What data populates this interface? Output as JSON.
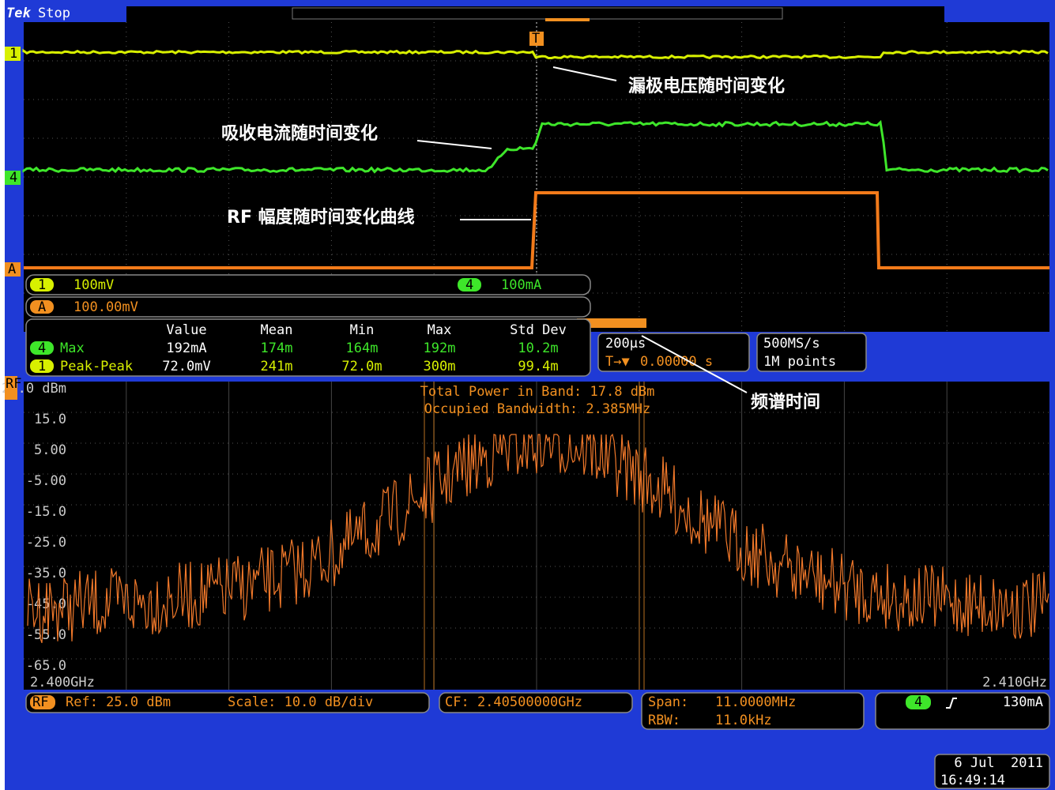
{
  "header": {
    "brand": "Tek",
    "status": "Stop"
  },
  "markers": {
    "ch1": "1",
    "ch4": "4",
    "ref": "A",
    "trigger": "T"
  },
  "annotations": [
    "漏极电压随时间变化",
    "吸收电流随时间变化",
    "RF 幅度随时间变化曲线",
    "频谱时间"
  ],
  "scale_bar": {
    "ch1": {
      "badge": "1",
      "text": "100mV"
    },
    "ch4": {
      "badge": "4",
      "text": "100mA"
    },
    "ref": {
      "badge": "A",
      "text": "100.00mV"
    }
  },
  "measurements": {
    "headers": [
      "Value",
      "Mean",
      "Min",
      "Max",
      "Std Dev"
    ],
    "rows": [
      {
        "badge": "4",
        "name": "Max",
        "cells": [
          "192mA",
          "174m",
          "164m",
          "192m",
          "10.2m"
        ]
      },
      {
        "badge": "1",
        "name": "Peak-Peak",
        "cells": [
          "72.0mV",
          "241m",
          "72.0m",
          "300m",
          "99.4m"
        ]
      }
    ]
  },
  "timebase": {
    "scale": "200µs",
    "position": "0.00000 s"
  },
  "acquisition": {
    "rate": "500MS/s",
    "length": "1M points"
  },
  "spectrum": {
    "badge": "RF",
    "y_labels": [
      "25.0 dBm",
      "15.0",
      "5.00",
      "-5.00",
      "-15.0",
      "-25.0",
      "-35.0",
      "-45.0",
      "-55.0",
      "-65.0"
    ],
    "x_start": "2.400GHz",
    "x_end": "2.410GHz",
    "readouts": [
      "Total Power in Band: 17.8 dBm",
      "Occupied Bandwidth: 2.385MHz"
    ]
  },
  "footer": {
    "badge": "RF",
    "ref": "Ref: 25.0 dBm",
    "scale": "Scale: 10.0 dB/div",
    "cf": "CF: 2.40500000GHz",
    "span_label": "Span:",
    "span": "11.0000MHz",
    "rbw_label": "RBW:",
    "rbw": "11.0kHz",
    "trigger_badge": "4",
    "trigger_level": "130mA",
    "date": "6 Jul  2011",
    "time": "16:49:14"
  }
}
